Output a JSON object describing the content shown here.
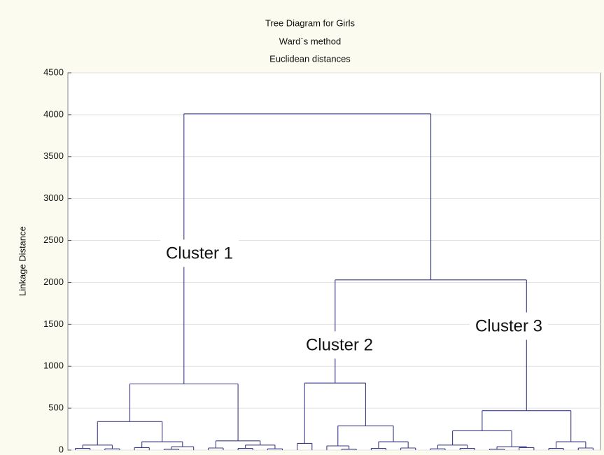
{
  "chart_data": {
    "type": "dendrogram",
    "title": [
      "Tree Diagram for Girls",
      "Ward`s method",
      "Euclidean distances"
    ],
    "y_label": "Linkage Distance",
    "ylim": [
      0,
      4500
    ],
    "yticks": [
      0,
      500,
      1000,
      1500,
      2000,
      2500,
      3000,
      3500,
      4000,
      4500
    ],
    "grid": true,
    "color": "#3c3c86",
    "annotations": [
      "Cluster 1",
      "Cluster 2",
      "Cluster 3"
    ],
    "tree": {
      "height": 4010,
      "children": [
        {
          "height": 790,
          "children": [
            {
              "height": 340,
              "children": [
                {
                  "height": 60,
                  "children": [
                    {
                      "height": 20,
                      "children": [
                        {
                          "height": 0
                        },
                        {
                          "height": 0
                        }
                      ]
                    },
                    {
                      "height": 15,
                      "children": [
                        {
                          "height": 0
                        },
                        {
                          "height": 0
                        }
                      ]
                    }
                  ]
                },
                {
                  "height": 100,
                  "children": [
                    {
                      "height": 30,
                      "children": [
                        {
                          "height": 0
                        },
                        {
                          "height": 0
                        }
                      ]
                    },
                    {
                      "height": 40,
                      "children": [
                        {
                          "height": 10,
                          "children": [
                            {
                              "height": 0
                            },
                            {
                              "height": 0
                            }
                          ]
                        },
                        {
                          "height": 0
                        }
                      ]
                    }
                  ]
                }
              ]
            },
            {
              "height": 110,
              "children": [
                {
                  "height": 25,
                  "children": [
                    {
                      "height": 0
                    },
                    {
                      "height": 0
                    }
                  ]
                },
                {
                  "height": 60,
                  "children": [
                    {
                      "height": 20,
                      "children": [
                        {
                          "height": 0
                        },
                        {
                          "height": 0
                        }
                      ]
                    },
                    {
                      "height": 15,
                      "children": [
                        {
                          "height": 0
                        },
                        {
                          "height": 0
                        }
                      ]
                    }
                  ]
                }
              ]
            }
          ]
        },
        {
          "height": 2030,
          "children": [
            {
              "height": 800,
              "children": [
                {
                  "height": 80,
                  "children": [
                    {
                      "height": 0
                    },
                    {
                      "height": 0
                    }
                  ]
                },
                {
                  "height": 290,
                  "children": [
                    {
                      "height": 50,
                      "children": [
                        {
                          "height": 0
                        },
                        {
                          "height": 10,
                          "children": [
                            {
                              "height": 0
                            },
                            {
                              "height": 0
                            }
                          ]
                        }
                      ]
                    },
                    {
                      "height": 100,
                      "children": [
                        {
                          "height": 20,
                          "children": [
                            {
                              "height": 0
                            },
                            {
                              "height": 0
                            }
                          ]
                        },
                        {
                          "height": 25,
                          "children": [
                            {
                              "height": 0
                            },
                            {
                              "height": 0
                            }
                          ]
                        }
                      ]
                    }
                  ]
                }
              ]
            },
            {
              "height": 470,
              "children": [
                {
                  "height": 230,
                  "children": [
                    {
                      "height": 60,
                      "children": [
                        {
                          "height": 15,
                          "children": [
                            {
                              "height": 0
                            },
                            {
                              "height": 0
                            }
                          ]
                        },
                        {
                          "height": 20,
                          "children": [
                            {
                              "height": 0
                            },
                            {
                              "height": 0
                            }
                          ]
                        }
                      ]
                    },
                    {
                      "height": 40,
                      "children": [
                        {
                          "height": 10,
                          "children": [
                            {
                              "height": 0
                            },
                            {
                              "height": 0
                            }
                          ]
                        },
                        {
                          "height": 30,
                          "children": [
                            {
                              "height": 0
                            },
                            {
                              "height": 0
                            }
                          ]
                        }
                      ]
                    }
                  ]
                },
                {
                  "height": 100,
                  "children": [
                    {
                      "height": 20,
                      "children": [
                        {
                          "height": 0
                        },
                        {
                          "height": 0
                        }
                      ]
                    },
                    {
                      "height": 25,
                      "children": [
                        {
                          "height": 0
                        },
                        {
                          "height": 0
                        }
                      ]
                    }
                  ]
                }
              ]
            }
          ]
        }
      ]
    }
  }
}
